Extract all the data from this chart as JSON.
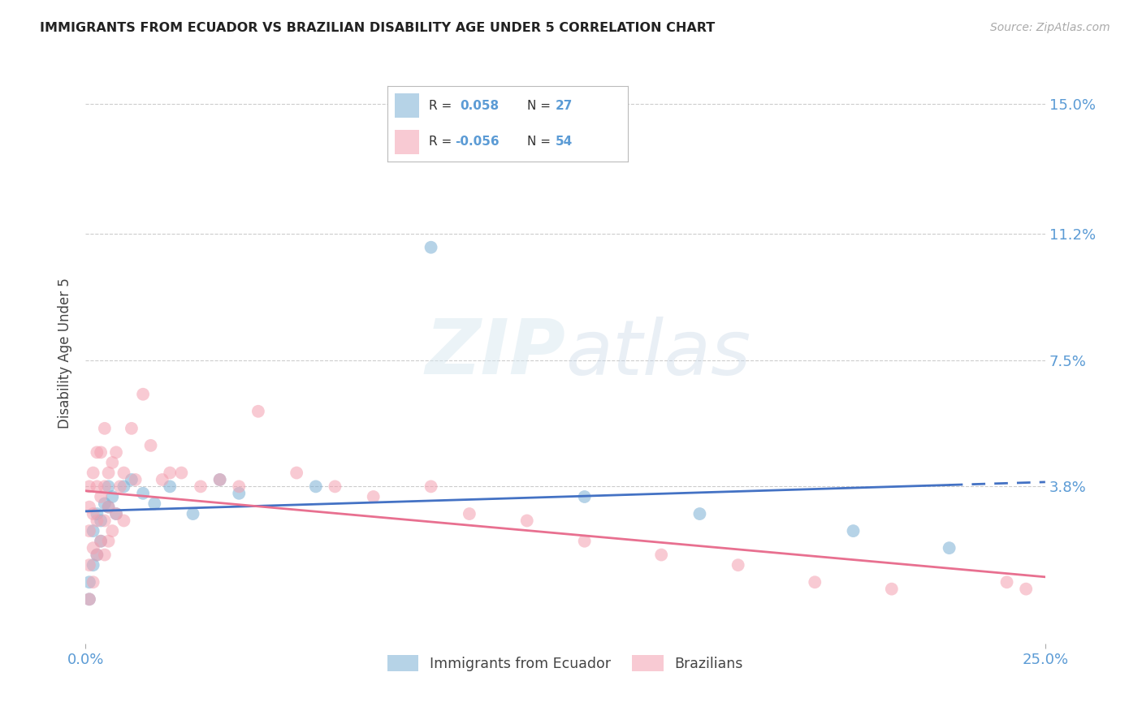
{
  "title": "IMMIGRANTS FROM ECUADOR VS BRAZILIAN DISABILITY AGE UNDER 5 CORRELATION CHART",
  "source": "Source: ZipAtlas.com",
  "ylabel": "Disability Age Under 5",
  "ytick_labels": [
    "15.0%",
    "11.2%",
    "7.5%",
    "3.8%"
  ],
  "ytick_values": [
    0.15,
    0.112,
    0.075,
    0.038
  ],
  "xlim": [
    0.0,
    0.25
  ],
  "ylim": [
    -0.008,
    0.162
  ],
  "color_blue": "#7BAFD4",
  "color_pink": "#F4A0B0",
  "color_blue_line": "#4472C4",
  "color_pink_line": "#E87090",
  "watermark_color": "#D8E8F0",
  "bg_color": "#FFFFFF",
  "grid_color": "#CCCCCC",
  "tick_color": "#5B9BD5",
  "ecuador_x": [
    0.001,
    0.001,
    0.002,
    0.002,
    0.003,
    0.003,
    0.004,
    0.004,
    0.005,
    0.006,
    0.006,
    0.007,
    0.008,
    0.01,
    0.012,
    0.015,
    0.018,
    0.022,
    0.028,
    0.035,
    0.04,
    0.06,
    0.09,
    0.13,
    0.16,
    0.2,
    0.225
  ],
  "ecuador_y": [
    0.005,
    0.01,
    0.015,
    0.025,
    0.03,
    0.018,
    0.028,
    0.022,
    0.033,
    0.038,
    0.032,
    0.035,
    0.03,
    0.038,
    0.04,
    0.036,
    0.033,
    0.038,
    0.03,
    0.04,
    0.036,
    0.038,
    0.108,
    0.035,
    0.03,
    0.025,
    0.02
  ],
  "brazil_x": [
    0.001,
    0.001,
    0.001,
    0.001,
    0.001,
    0.002,
    0.002,
    0.002,
    0.002,
    0.003,
    0.003,
    0.003,
    0.003,
    0.004,
    0.004,
    0.004,
    0.005,
    0.005,
    0.005,
    0.005,
    0.006,
    0.006,
    0.006,
    0.007,
    0.007,
    0.008,
    0.008,
    0.009,
    0.01,
    0.01,
    0.012,
    0.013,
    0.015,
    0.017,
    0.02,
    0.022,
    0.025,
    0.03,
    0.035,
    0.04,
    0.045,
    0.055,
    0.065,
    0.075,
    0.09,
    0.1,
    0.115,
    0.13,
    0.15,
    0.17,
    0.19,
    0.21,
    0.24,
    0.245
  ],
  "brazil_y": [
    0.005,
    0.015,
    0.025,
    0.032,
    0.038,
    0.01,
    0.02,
    0.03,
    0.042,
    0.018,
    0.028,
    0.038,
    0.048,
    0.022,
    0.035,
    0.048,
    0.018,
    0.028,
    0.038,
    0.055,
    0.022,
    0.032,
    0.042,
    0.025,
    0.045,
    0.03,
    0.048,
    0.038,
    0.028,
    0.042,
    0.055,
    0.04,
    0.065,
    0.05,
    0.04,
    0.042,
    0.042,
    0.038,
    0.04,
    0.038,
    0.06,
    0.042,
    0.038,
    0.035,
    0.038,
    0.03,
    0.028,
    0.022,
    0.018,
    0.015,
    0.01,
    0.008,
    0.01,
    0.008
  ],
  "eq_R": 0.058,
  "eq_N": 27,
  "br_R": -0.056,
  "br_N": 54
}
